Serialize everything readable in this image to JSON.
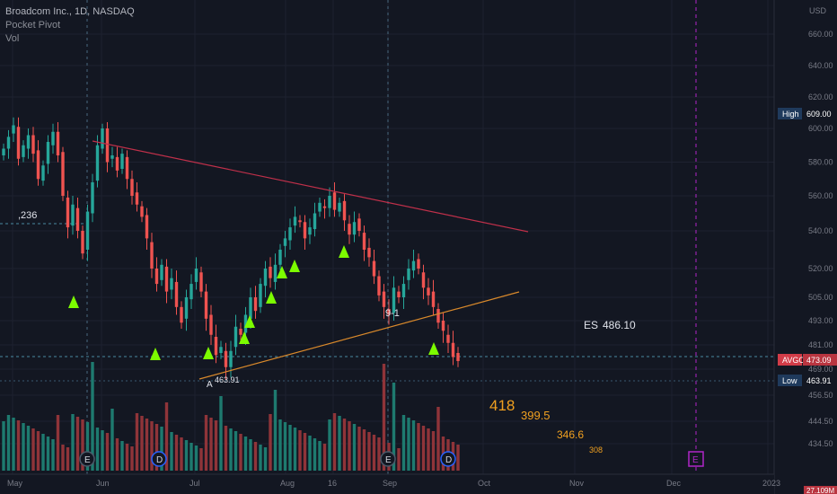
{
  "header": {
    "symbol_line": "Broadcom Inc., 1D, NASDAQ",
    "indicators": [
      "Pocket Pivot",
      "Vol"
    ]
  },
  "colors": {
    "background": "#131722",
    "up": "#26a69a",
    "down": "#ef5350",
    "vol_up": "#1e7a6f",
    "vol_down": "#8f3439",
    "resistance": "#c0304a",
    "support": "#d9892b",
    "pivot_marker": "#7cfc00",
    "target": "#f0a020",
    "earnings": "#b026c8"
  },
  "chart_data": {
    "type": "candlestick",
    "currency": "USD",
    "price_ticks": [
      "660.00",
      "640.00",
      "620.00",
      "600.00",
      "580.00",
      "560.00",
      "540.00",
      "520.00",
      "505.00",
      "493.00",
      "481.00",
      "469.00",
      "456.50",
      "444.50",
      "434.50"
    ],
    "x_ticks": [
      "May",
      "Jun",
      "Jul",
      "Aug",
      "16",
      "Sep",
      "Oct",
      "Nov",
      "Dec",
      "2023"
    ],
    "badges": {
      "high": {
        "label": "High",
        "value": "609.00"
      },
      "last": {
        "label": "AVGO",
        "value": "473.09"
      },
      "low": {
        "label": "Low",
        "value": "463.91"
      },
      "volume": "27.109M"
    },
    "annotations": {
      "fib": ",236",
      "point_a": "A",
      "point_a_value": "463.91",
      "count": "9-1",
      "es_label": "ES",
      "es_value": "486.10",
      "targets": [
        "418",
        "399.5",
        "346.6",
        "308"
      ]
    },
    "events": {
      "earnings": "E",
      "dividend": "D"
    },
    "closes": [
      588,
      595,
      602,
      582,
      590,
      596,
      585,
      570,
      578,
      592,
      598,
      584,
      560,
      542,
      555,
      540,
      528,
      551,
      568,
      590,
      600,
      580,
      584,
      575,
      585,
      570,
      560,
      555,
      548,
      536,
      520,
      512,
      522,
      508,
      515,
      500,
      492,
      505,
      512,
      520,
      508,
      494,
      486,
      476,
      480,
      470,
      478,
      490,
      486,
      496,
      505,
      498,
      512,
      520,
      515,
      522,
      530,
      536,
      542,
      548,
      545,
      536,
      542,
      550,
      556,
      553,
      560,
      552,
      556,
      546,
      538,
      545,
      540,
      530,
      526,
      516,
      506,
      500,
      496,
      510,
      505,
      512,
      520,
      524,
      520,
      510,
      506,
      500,
      492,
      488,
      482,
      475,
      473
    ]
  }
}
